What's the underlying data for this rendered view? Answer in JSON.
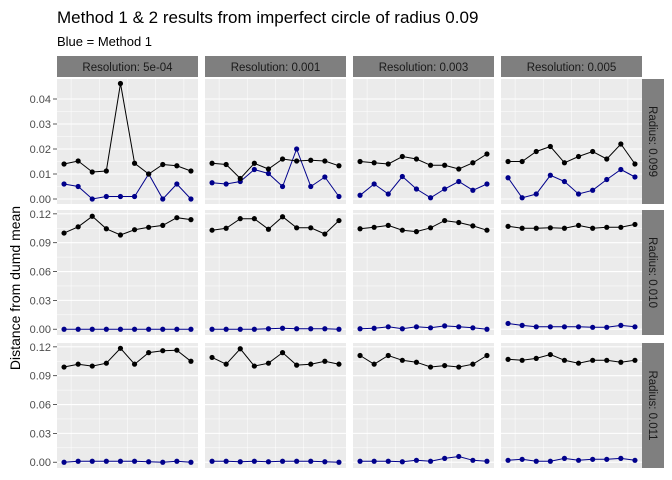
{
  "chart_data": {
    "type": "line",
    "title": "Method 1 & 2 results from imperfect circle of radius 0.09",
    "subtitle": "Blue = Method 1",
    "ylabel": "Distance from dumd mean",
    "xlabel": "",
    "grid": true,
    "legend": "none",
    "colors": {
      "black": "#000000",
      "blue": "#00008B",
      "panel_bg": "#EBEBEB",
      "strip_bg": "#7F7F7F"
    },
    "columns": [
      "Resolution: 5e-04",
      "Resolution: 0.001",
      "Resolution: 0.003",
      "Resolution: 0.005"
    ],
    "rows": [
      {
        "label": "Radius: 0.099",
        "ylim": [
          -0.002,
          0.048
        ],
        "yticks": [
          "0.00",
          "0.01",
          "0.02",
          "0.03",
          "0.04"
        ],
        "ytick_values": [
          0,
          0.01,
          0.02,
          0.03,
          0.04
        ]
      },
      {
        "label": "Radius: 0.010",
        "ylim": [
          -0.006,
          0.124
        ],
        "yticks": [
          "0.00",
          "0.03",
          "0.06",
          "0.09",
          "0.12"
        ],
        "ytick_values": [
          0,
          0.03,
          0.06,
          0.09,
          0.12
        ]
      },
      {
        "label": "Radius: 0.011",
        "ylim": [
          -0.006,
          0.124
        ],
        "yticks": [
          "0.00",
          "0.03",
          "0.06",
          "0.09",
          "0.12"
        ],
        "ytick_values": [
          0,
          0.03,
          0.06,
          0.09,
          0.12
        ]
      }
    ],
    "xlim": [
      0.5,
      10.5
    ],
    "x": [
      1,
      2,
      3,
      4,
      5,
      6,
      7,
      8,
      9,
      10
    ],
    "panels": [
      {
        "row": 0,
        "col": 0,
        "black": [
          0.014,
          0.0152,
          0.0108,
          0.0112,
          0.0462,
          0.0143,
          0.01,
          0.0138,
          0.0133,
          0.0112
        ],
        "blue": [
          0.006,
          0.005,
          0.0,
          0.001,
          0.001,
          0.001,
          0.01,
          0.0,
          0.006,
          0.0
        ]
      },
      {
        "row": 0,
        "col": 1,
        "black": [
          0.0143,
          0.0138,
          0.0082,
          0.0143,
          0.012,
          0.016,
          0.0152,
          0.0155,
          0.0152,
          0.0133
        ],
        "blue": [
          0.0065,
          0.006,
          0.007,
          0.0118,
          0.0102,
          0.005,
          0.02,
          0.005,
          0.0088,
          0.001
        ]
      },
      {
        "row": 0,
        "col": 2,
        "black": [
          0.015,
          0.0145,
          0.014,
          0.017,
          0.016,
          0.0135,
          0.0135,
          0.012,
          0.0145,
          0.018
        ],
        "blue": [
          0.0015,
          0.006,
          0.002,
          0.009,
          0.004,
          0.0005,
          0.004,
          0.007,
          0.0035,
          0.006
        ]
      },
      {
        "row": 0,
        "col": 3,
        "black": [
          0.015,
          0.015,
          0.019,
          0.021,
          0.0145,
          0.017,
          0.019,
          0.016,
          0.022,
          0.014
        ],
        "blue": [
          0.0085,
          0.0005,
          0.002,
          0.0095,
          0.007,
          0.002,
          0.0035,
          0.0078,
          0.0118,
          0.0088
        ]
      },
      {
        "row": 1,
        "col": 0,
        "black": [
          0.1,
          0.1065,
          0.1175,
          0.1045,
          0.098,
          0.1035,
          0.106,
          0.108,
          0.116,
          0.114
        ],
        "blue": [
          0.0,
          0.0,
          0.0,
          0.0,
          0.0,
          0.0,
          0.0,
          0.0,
          0.0,
          0.0
        ]
      },
      {
        "row": 1,
        "col": 1,
        "black": [
          0.103,
          0.105,
          0.115,
          0.115,
          0.104,
          0.117,
          0.1055,
          0.1055,
          0.099,
          0.113
        ],
        "blue": [
          0.0,
          0.0,
          0.0,
          0.0,
          0.0005,
          0.001,
          0.0005,
          0.0005,
          0.0005,
          0.0
        ]
      },
      {
        "row": 1,
        "col": 2,
        "black": [
          0.1045,
          0.106,
          0.108,
          0.103,
          0.1015,
          0.1055,
          0.113,
          0.111,
          0.1075,
          0.103
        ],
        "blue": [
          0.0005,
          0.001,
          0.0025,
          0.0005,
          0.0025,
          0.0015,
          0.0035,
          0.0025,
          0.0015,
          0.0
        ]
      },
      {
        "row": 1,
        "col": 3,
        "black": [
          0.107,
          0.105,
          0.105,
          0.1055,
          0.105,
          0.108,
          0.105,
          0.106,
          0.106,
          0.109
        ],
        "blue": [
          0.006,
          0.004,
          0.0025,
          0.0025,
          0.0025,
          0.0025,
          0.002,
          0.002,
          0.004,
          0.0025
        ]
      },
      {
        "row": 2,
        "col": 0,
        "black": [
          0.099,
          0.102,
          0.1,
          0.103,
          0.1185,
          0.102,
          0.114,
          0.116,
          0.1165,
          0.105
        ],
        "blue": [
          0.0,
          0.001,
          0.001,
          0.001,
          0.001,
          0.001,
          0.0005,
          0.0,
          0.001,
          0.0
        ]
      },
      {
        "row": 2,
        "col": 1,
        "black": [
          0.109,
          0.102,
          0.118,
          0.1,
          0.103,
          0.114,
          0.101,
          0.102,
          0.105,
          0.102
        ],
        "blue": [
          0.001,
          0.001,
          0.0005,
          0.001,
          0.0005,
          0.001,
          0.001,
          0.001,
          0.0005,
          0.0
        ]
      },
      {
        "row": 2,
        "col": 2,
        "black": [
          0.111,
          0.102,
          0.111,
          0.106,
          0.104,
          0.099,
          0.1005,
          0.099,
          0.102,
          0.111
        ],
        "blue": [
          0.001,
          0.001,
          0.001,
          0.0005,
          0.002,
          0.001,
          0.004,
          0.006,
          0.002,
          0.001
        ]
      },
      {
        "row": 2,
        "col": 3,
        "black": [
          0.107,
          0.106,
          0.108,
          0.112,
          0.106,
          0.103,
          0.106,
          0.106,
          0.104,
          0.106
        ],
        "blue": [
          0.002,
          0.003,
          0.001,
          0.001,
          0.004,
          0.002,
          0.003,
          0.003,
          0.004,
          0.002
        ]
      }
    ]
  }
}
